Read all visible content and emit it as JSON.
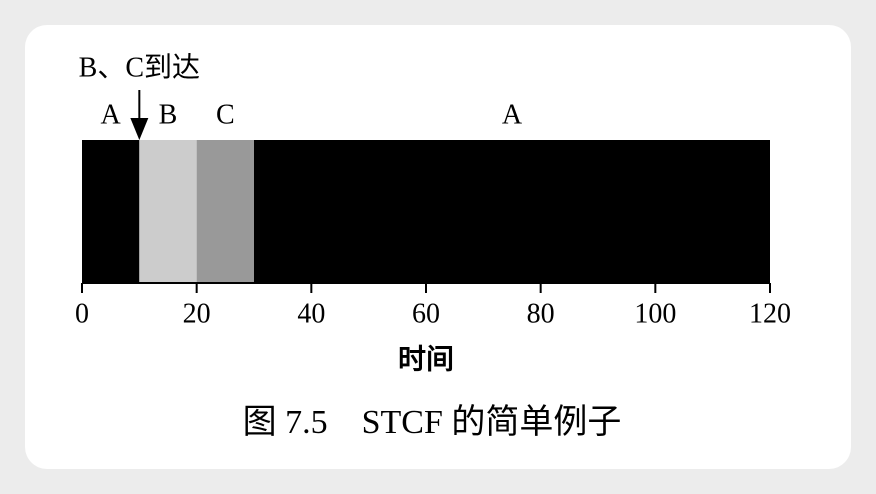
{
  "chart_data": {
    "type": "gantt",
    "title": "图 7.5　STCF 的简单例子",
    "xlabel": "时间",
    "annotation": {
      "text": "B、C到达",
      "x": 10
    },
    "segments": [
      {
        "name": "A",
        "start": 0,
        "end": 10,
        "color": "#000000"
      },
      {
        "name": "B",
        "start": 10,
        "end": 20,
        "color": "#cccccc"
      },
      {
        "name": "C",
        "start": 20,
        "end": 30,
        "color": "#999999"
      },
      {
        "name": "A",
        "start": 30,
        "end": 120,
        "color": "#000000"
      }
    ],
    "xlim": [
      0,
      120
    ],
    "xticks": [
      0,
      20,
      40,
      60,
      80,
      100,
      120
    ]
  }
}
